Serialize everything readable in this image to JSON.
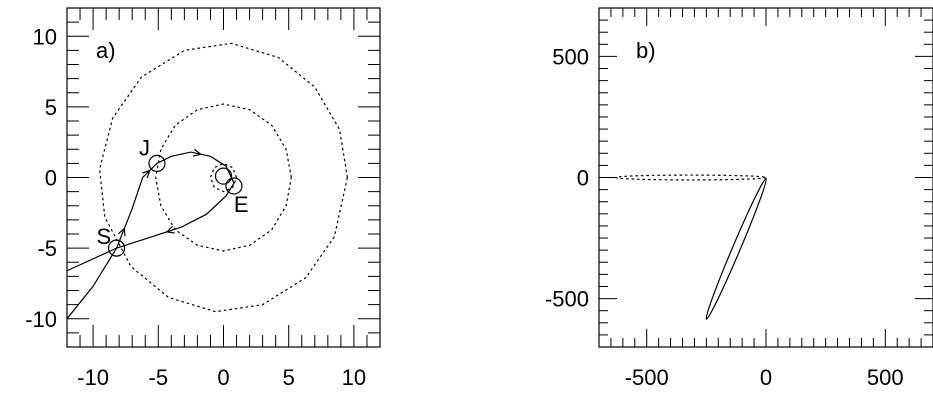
{
  "chart_data": [
    {
      "type": "line",
      "panel_label": "a)",
      "xlim": [
        -12,
        12
      ],
      "ylim": [
        -12,
        12
      ],
      "x_ticks": [
        -10,
        -5,
        0,
        5,
        10
      ],
      "x_tick_labels": [
        "-10",
        "-5",
        "0",
        "5",
        "10"
      ],
      "y_ticks": [
        -10,
        -5,
        0,
        5,
        10
      ],
      "y_tick_labels": [
        "-10",
        "-5",
        "0",
        "5",
        "10"
      ],
      "grid": false,
      "series": [
        {
          "style": "solid",
          "arrows": true,
          "points": [
            [
              -12.0,
              -10.0
            ],
            [
              -10.0,
              -7.7
            ],
            [
              -8.2,
              -5.0
            ],
            [
              -7.0,
              -2.2
            ],
            [
              -6.2,
              0.0
            ],
            [
              -5.1,
              1.0
            ],
            [
              -4.0,
              1.5
            ],
            [
              -2.5,
              1.8
            ],
            [
              -1.0,
              1.5
            ],
            [
              0.2,
              0.8
            ],
            [
              0.8,
              -0.4
            ],
            [
              0.2,
              -1.3
            ],
            [
              -1.3,
              -2.6
            ],
            [
              -3.2,
              -3.5
            ],
            [
              -5.5,
              -4.2
            ],
            [
              -8.2,
              -5.0
            ],
            [
              -12.0,
              -6.6
            ]
          ]
        },
        {
          "style": "dotted",
          "arrows": false,
          "points": [
            [
              9.5,
              0.0
            ],
            [
              8.9,
              3.4
            ],
            [
              7.0,
              6.4
            ],
            [
              4.2,
              8.5
            ],
            [
              0.6,
              9.5
            ],
            [
              -3.0,
              9.0
            ],
            [
              -6.3,
              7.1
            ],
            [
              -8.5,
              4.2
            ],
            [
              -9.5,
              0.6
            ],
            [
              -9.1,
              -2.8
            ],
            [
              -7.1,
              -6.3
            ],
            [
              -4.2,
              -8.5
            ],
            [
              -0.6,
              -9.5
            ],
            [
              3.0,
              -9.0
            ],
            [
              6.3,
              -7.1
            ],
            [
              8.5,
              -4.2
            ],
            [
              9.5,
              0.0
            ]
          ]
        },
        {
          "style": "dotted",
          "arrows": false,
          "points": [
            [
              5.2,
              0.0
            ],
            [
              4.8,
              2.0
            ],
            [
              3.7,
              3.7
            ],
            [
              2.0,
              4.8
            ],
            [
              0.0,
              5.2
            ],
            [
              -2.0,
              4.8
            ],
            [
              -3.7,
              3.7
            ],
            [
              -4.8,
              2.0
            ],
            [
              -5.2,
              0.0
            ],
            [
              -4.8,
              -2.0
            ],
            [
              -3.7,
              -3.7
            ],
            [
              -2.0,
              -4.8
            ],
            [
              0.0,
              -5.2
            ],
            [
              2.0,
              -4.8
            ],
            [
              3.7,
              -3.7
            ],
            [
              4.8,
              -2.0
            ],
            [
              5.2,
              0.0
            ]
          ]
        },
        {
          "style": "dotted",
          "arrows": false,
          "points": [
            [
              1.0,
              0.0
            ],
            [
              0.7,
              0.7
            ],
            [
              0.0,
              1.0
            ],
            [
              -0.7,
              0.7
            ],
            [
              -1.0,
              0.0
            ],
            [
              -0.7,
              -0.7
            ],
            [
              0.0,
              -1.0
            ],
            [
              0.7,
              -0.7
            ],
            [
              1.0,
              0.0
            ]
          ]
        }
      ],
      "markers": [
        {
          "label": "J",
          "x": -5.1,
          "y": 1.0
        },
        {
          "label": "S",
          "x": -8.2,
          "y": -5.0
        },
        {
          "label": "E",
          "x": 0.8,
          "y": -0.6
        },
        {
          "label": "",
          "x": 0.0,
          "y": 0.1
        }
      ]
    },
    {
      "type": "line",
      "panel_label": "b)",
      "xlim": [
        -700,
        700
      ],
      "ylim": [
        -700,
        700
      ],
      "x_ticks": [
        -500,
        0,
        500
      ],
      "x_tick_labels": [
        "-500",
        "0",
        "500"
      ],
      "y_ticks": [
        -500,
        0,
        500
      ],
      "y_tick_labels": [
        "-500",
        "0",
        "500"
      ],
      "grid": false,
      "series": [
        {
          "style": "dotted",
          "ellipse": {
            "cx": -315,
            "cy": 0,
            "rx": 315,
            "ry": 10,
            "angle_deg": 0
          }
        },
        {
          "style": "solid",
          "ellipse": {
            "cx": -125,
            "cy": -295,
            "rx": 320,
            "ry": 16,
            "angle_deg": -67
          }
        }
      ]
    }
  ]
}
